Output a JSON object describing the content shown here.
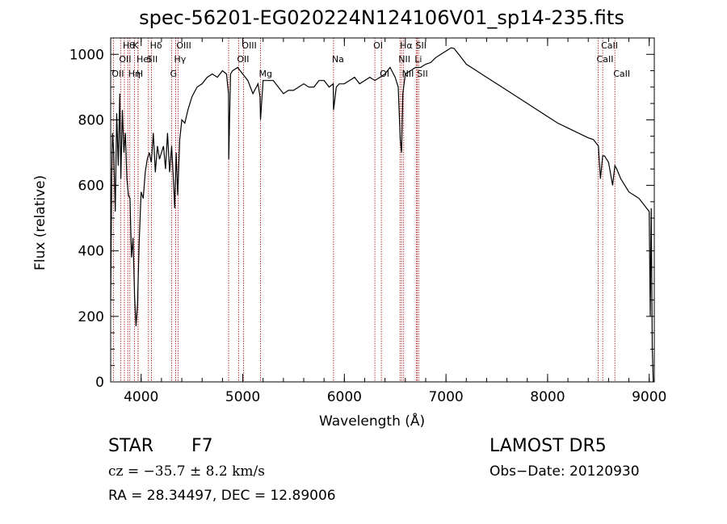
{
  "chart_data": {
    "type": "line",
    "title": "spec-56201-EG020224N124106V01_sp14-235.fits",
    "xlabel": "Wavelength (Å)",
    "ylabel": "Flux (relative)",
    "xlim": [
      3700,
      9050
    ],
    "ylim": [
      0,
      1050
    ],
    "xticks": [
      4000,
      5000,
      6000,
      7000,
      8000,
      9000
    ],
    "yticks": [
      0,
      200,
      400,
      600,
      800,
      1000
    ],
    "grid": false,
    "legend": "none",
    "line_color": "#000000",
    "marker_color": "#b22222",
    "series": [
      {
        "x": [
          3700,
          3710,
          3718,
          3730,
          3745,
          3760,
          3775,
          3790,
          3800,
          3815,
          3830,
          3845,
          3860,
          3875,
          3890,
          3905,
          3920,
          3935,
          3950,
          3965,
          3980,
          4000,
          4020,
          4040,
          4060,
          4080,
          4100,
          4120,
          4140,
          4160,
          4180,
          4200,
          4220,
          4240,
          4260,
          4280,
          4300,
          4320,
          4330,
          4345,
          4360,
          4380,
          4400,
          4430,
          4460,
          4500,
          4550,
          4600,
          4650,
          4700,
          4750,
          4800,
          4840,
          4860,
          4862,
          4880,
          4900,
          4950,
          5000,
          5050,
          5100,
          5150,
          5170,
          5175,
          5200,
          5250,
          5300,
          5350,
          5400,
          5450,
          5500,
          5550,
          5600,
          5650,
          5700,
          5750,
          5800,
          5850,
          5890,
          5893,
          5920,
          5950,
          6000,
          6050,
          6100,
          6150,
          6200,
          6250,
          6300,
          6350,
          6400,
          6450,
          6500,
          6530,
          6550,
          6563,
          6575,
          6600,
          6650,
          6700,
          6750,
          6800,
          6850,
          6900,
          6950,
          7000,
          7050,
          7080,
          7100,
          7150,
          7200,
          7300,
          7400,
          7500,
          7600,
          7700,
          7800,
          7900,
          8000,
          8100,
          8200,
          8300,
          8400,
          8450,
          8500,
          8520,
          8542,
          8560,
          8600,
          8640,
          8662,
          8680,
          8720,
          8760,
          8800,
          8850,
          8900,
          8950,
          9000,
          9010,
          9020,
          9030,
          9040
        ],
        "y": [
          250,
          620,
          760,
          700,
          520,
          820,
          660,
          880,
          620,
          830,
          700,
          760,
          620,
          570,
          560,
          380,
          440,
          260,
          170,
          240,
          420,
          580,
          560,
          640,
          680,
          700,
          670,
          760,
          640,
          720,
          680,
          700,
          720,
          650,
          760,
          640,
          720,
          600,
          530,
          700,
          570,
          740,
          800,
          790,
          830,
          870,
          900,
          910,
          930,
          940,
          930,
          950,
          940,
          880,
          680,
          940,
          950,
          960,
          940,
          920,
          880,
          910,
          870,
          800,
          920,
          920,
          920,
          900,
          880,
          890,
          890,
          900,
          910,
          900,
          900,
          920,
          920,
          900,
          910,
          830,
          900,
          910,
          910,
          920,
          930,
          910,
          920,
          930,
          920,
          930,
          940,
          960,
          930,
          900,
          740,
          700,
          880,
          940,
          950,
          960,
          960,
          970,
          975,
          990,
          1000,
          1010,
          1020,
          1018,
          1010,
          990,
          970,
          950,
          930,
          910,
          890,
          870,
          850,
          830,
          810,
          790,
          775,
          760,
          745,
          740,
          720,
          620,
          690,
          690,
          670,
          600,
          660,
          650,
          620,
          600,
          580,
          570,
          560,
          540,
          520,
          200,
          530,
          100,
          0
        ]
      }
    ],
    "line_markers": [
      {
        "x": 3727,
        "label": "OII",
        "row": 2
      },
      {
        "x": 3798,
        "label": "OII",
        "row": 1
      },
      {
        "x": 3835,
        "label": "Hθ",
        "row": 0
      },
      {
        "x": 3869,
        "label": "",
        "row": 0
      },
      {
        "x": 3889,
        "label": "Hη",
        "row": 2
      },
      {
        "x": 3934,
        "label": "K",
        "row": 0
      },
      {
        "x": 3969,
        "label": "H",
        "row": 2
      },
      {
        "x": 3970,
        "label": "HeI",
        "row": 1
      },
      {
        "x": 4072,
        "label": "SII",
        "row": 1
      },
      {
        "x": 4102,
        "label": "Hδ",
        "row": 0
      },
      {
        "x": 4300,
        "label": "G",
        "row": 2
      },
      {
        "x": 4340,
        "label": "Hγ",
        "row": 1
      },
      {
        "x": 4363,
        "label": "OIII",
        "row": 0
      },
      {
        "x": 4861,
        "label": "",
        "row": 0
      },
      {
        "x": 4959,
        "label": "OII",
        "row": 1
      },
      {
        "x": 5007,
        "label": "OIII",
        "row": 0
      },
      {
        "x": 5175,
        "label": "Mg",
        "row": 2
      },
      {
        "x": 5893,
        "label": "Na",
        "row": 1
      },
      {
        "x": 6300,
        "label": "OI",
        "row": 0
      },
      {
        "x": 6364,
        "label": "OI",
        "row": 2
      },
      {
        "x": 6548,
        "label": "NII",
        "row": 1
      },
      {
        "x": 6563,
        "label": "Hα",
        "row": 0
      },
      {
        "x": 6583,
        "label": "NII",
        "row": 2
      },
      {
        "x": 6707,
        "label": "Li",
        "row": 1
      },
      {
        "x": 6717,
        "label": "SII",
        "row": 0
      },
      {
        "x": 6731,
        "label": "SII",
        "row": 2
      },
      {
        "x": 8498,
        "label": "CaII",
        "row": 1
      },
      {
        "x": 8542,
        "label": "CaII",
        "row": 0
      },
      {
        "x": 8662,
        "label": "CaII",
        "row": 2
      }
    ]
  },
  "info": {
    "object_class": "STAR",
    "subclass": "F7",
    "survey": "LAMOST DR5",
    "cz": "cz = −35.7 ± 8.2 km/s",
    "obs_date": "Obs−Date: 20120930",
    "coords": "RA =  28.34497, DEC =  12.89006"
  }
}
